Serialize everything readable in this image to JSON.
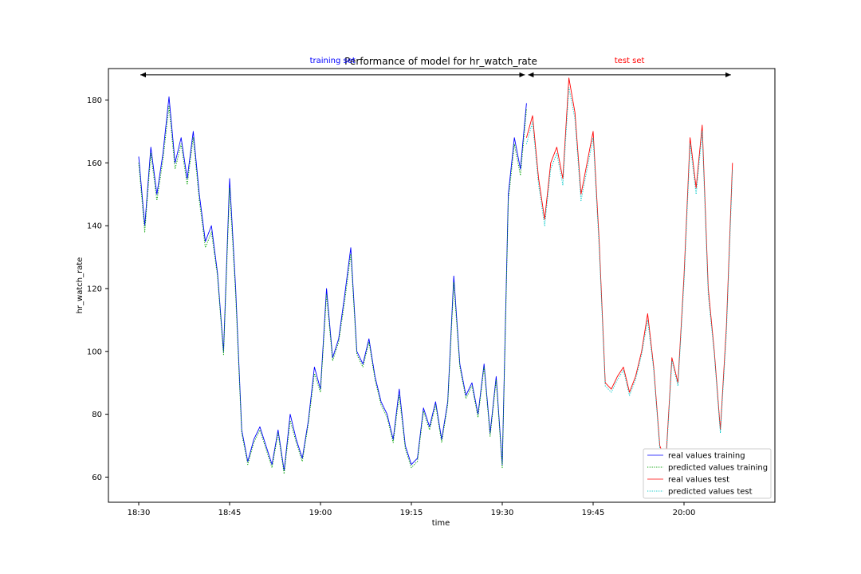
{
  "chart_data": {
    "type": "line",
    "title": "Performance of model for hr_watch_rate",
    "xlabel": "time",
    "ylabel": "hr_watch_rate",
    "xlim": [
      "18:25",
      "20:15"
    ],
    "ylim": [
      52,
      190
    ],
    "x_ticks": [
      "18:30",
      "18:45",
      "19:00",
      "19:15",
      "19:30",
      "19:45",
      "20:00"
    ],
    "y_ticks": [
      60,
      80,
      100,
      120,
      140,
      160,
      180
    ],
    "legend_position": "lower-right",
    "grid": false,
    "annotations": [
      {
        "text": "training set",
        "color": "#0000ff",
        "span_start": "18:30",
        "span_end": "19:34",
        "y": 188
      },
      {
        "text": "test set",
        "color": "#ff0000",
        "span_start": "19:34",
        "span_end": "20:08",
        "y": 188
      }
    ],
    "series": [
      {
        "name": "real values training",
        "color": "#0000ff",
        "style": "solid",
        "split": "training"
      },
      {
        "name": "predicted values training",
        "color": "#00a000",
        "style": "dotted",
        "split": "training"
      },
      {
        "name": "real values test",
        "color": "#ff0000",
        "style": "solid",
        "split": "test"
      },
      {
        "name": "predicted values test",
        "color": "#00c8c8",
        "style": "dotted",
        "split": "test"
      }
    ],
    "training": {
      "x": [
        "18:30",
        "18:31",
        "18:32",
        "18:33",
        "18:34",
        "18:35",
        "18:36",
        "18:37",
        "18:38",
        "18:39",
        "18:40",
        "18:41",
        "18:42",
        "18:43",
        "18:44",
        "18:45",
        "18:46",
        "18:47",
        "18:48",
        "18:49",
        "18:50",
        "18:51",
        "18:52",
        "18:53",
        "18:54",
        "18:55",
        "18:56",
        "18:57",
        "18:58",
        "18:59",
        "19:00",
        "19:01",
        "19:02",
        "19:03",
        "19:04",
        "19:05",
        "19:06",
        "19:07",
        "19:08",
        "19:09",
        "19:10",
        "19:11",
        "19:12",
        "19:13",
        "19:14",
        "19:15",
        "19:16",
        "19:17",
        "19:18",
        "19:19",
        "19:20",
        "19:21",
        "19:22",
        "19:23",
        "19:24",
        "19:25",
        "19:26",
        "19:27",
        "19:28",
        "19:29",
        "19:30",
        "19:31",
        "19:32",
        "19:33",
        "19:34"
      ],
      "real": [
        162,
        140,
        165,
        150,
        163,
        181,
        160,
        168,
        155,
        170,
        150,
        135,
        140,
        125,
        100,
        155,
        120,
        75,
        65,
        72,
        76,
        70,
        64,
        75,
        62,
        80,
        72,
        66,
        78,
        95,
        88,
        120,
        98,
        104,
        118,
        133,
        100,
        96,
        104,
        92,
        84,
        80,
        72,
        88,
        70,
        64,
        66,
        82,
        76,
        84,
        72,
        84,
        124,
        96,
        86,
        90,
        80,
        96,
        74,
        92,
        64,
        150,
        168,
        158,
        179
      ],
      "pred": [
        160,
        138,
        163,
        148,
        161,
        178,
        158,
        166,
        153,
        168,
        148,
        133,
        138,
        124,
        99,
        152,
        118,
        74,
        64,
        71,
        75,
        69,
        63,
        74,
        61,
        78,
        71,
        65,
        77,
        93,
        87,
        118,
        97,
        103,
        116,
        131,
        99,
        95,
        103,
        91,
        83,
        79,
        71,
        86,
        69,
        63,
        65,
        81,
        75,
        83,
        71,
        83,
        122,
        95,
        85,
        89,
        79,
        95,
        73,
        91,
        63,
        148,
        166,
        156,
        177
      ]
    },
    "test": {
      "x": [
        "19:34",
        "19:35",
        "19:36",
        "19:37",
        "19:38",
        "19:39",
        "19:40",
        "19:41",
        "19:42",
        "19:43",
        "19:44",
        "19:45",
        "19:46",
        "19:47",
        "19:48",
        "19:49",
        "19:50",
        "19:51",
        "19:52",
        "19:53",
        "19:54",
        "19:55",
        "19:56",
        "19:57",
        "19:58",
        "19:59",
        "20:00",
        "20:01",
        "20:02",
        "20:03",
        "20:04",
        "20:05",
        "20:06",
        "20:07",
        "20:08"
      ],
      "real": [
        168,
        175,
        155,
        142,
        160,
        165,
        155,
        187,
        176,
        150,
        160,
        170,
        135,
        90,
        88,
        92,
        95,
        87,
        92,
        100,
        112,
        95,
        70,
        65,
        98,
        90,
        124,
        168,
        152,
        172,
        120,
        100,
        75,
        108,
        160
      ],
      "pred": [
        166,
        173,
        153,
        140,
        158,
        163,
        153,
        184,
        174,
        148,
        158,
        168,
        133,
        89,
        87,
        91,
        94,
        86,
        91,
        99,
        110,
        94,
        69,
        64,
        97,
        89,
        122,
        166,
        150,
        170,
        118,
        99,
        74,
        106,
        158
      ]
    }
  }
}
